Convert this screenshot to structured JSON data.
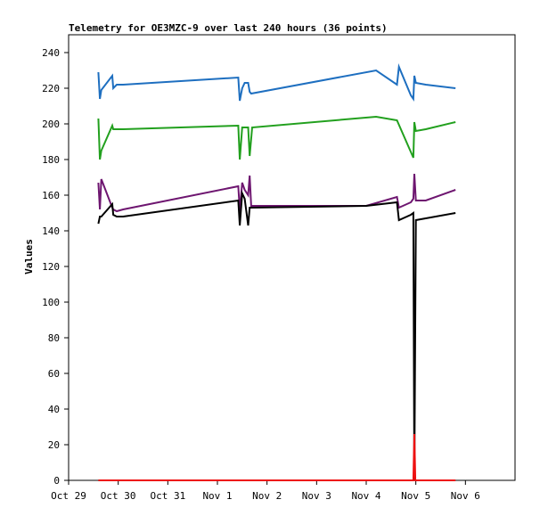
{
  "chart_data": {
    "type": "line",
    "title": "Telemetry for OE3MZC-9 over last 240 hours (36 points)",
    "xlabel": "",
    "ylabel": "Values",
    "xlim": [
      0,
      9
    ],
    "ylim": [
      0,
      250
    ],
    "x_ticks": [
      {
        "v": 0,
        "label": "Oct 29"
      },
      {
        "v": 1,
        "label": "Oct 30"
      },
      {
        "v": 2,
        "label": "Oct 31"
      },
      {
        "v": 3,
        "label": "Nov 1"
      },
      {
        "v": 4,
        "label": "Nov 2"
      },
      {
        "v": 5,
        "label": "Nov 3"
      },
      {
        "v": 6,
        "label": "Nov 4"
      },
      {
        "v": 7,
        "label": "Nov 5"
      },
      {
        "v": 8,
        "label": "Nov 6"
      }
    ],
    "y_ticks": [
      0,
      20,
      40,
      60,
      80,
      100,
      120,
      140,
      160,
      180,
      200,
      220,
      240
    ],
    "grid": false,
    "legend": "none",
    "series": [
      {
        "color": "#1e6fc0",
        "points": [
          [
            0.6,
            229
          ],
          [
            0.63,
            214
          ],
          [
            0.66,
            219
          ],
          [
            0.88,
            227
          ],
          [
            0.9,
            220
          ],
          [
            0.97,
            222
          ],
          [
            1.1,
            222
          ],
          [
            3.42,
            226
          ],
          [
            3.45,
            213
          ],
          [
            3.5,
            220
          ],
          [
            3.55,
            223
          ],
          [
            3.62,
            223
          ],
          [
            3.65,
            218
          ],
          [
            3.68,
            217
          ],
          [
            6.2,
            230
          ],
          [
            6.62,
            222
          ],
          [
            6.66,
            232
          ],
          [
            6.9,
            216
          ],
          [
            6.95,
            214
          ],
          [
            6.97,
            227
          ],
          [
            7.0,
            223
          ],
          [
            7.2,
            222
          ],
          [
            7.8,
            220
          ]
        ]
      },
      {
        "color": "#22a01e",
        "points": [
          [
            0.6,
            203
          ],
          [
            0.63,
            180
          ],
          [
            0.66,
            185
          ],
          [
            0.88,
            199
          ],
          [
            0.9,
            197
          ],
          [
            0.97,
            197
          ],
          [
            1.1,
            197
          ],
          [
            3.42,
            199
          ],
          [
            3.45,
            180
          ],
          [
            3.5,
            198
          ],
          [
            3.55,
            198
          ],
          [
            3.62,
            198
          ],
          [
            3.65,
            182
          ],
          [
            3.7,
            198
          ],
          [
            6.2,
            204
          ],
          [
            6.62,
            202
          ],
          [
            6.95,
            181
          ],
          [
            6.97,
            201
          ],
          [
            7.0,
            196
          ],
          [
            7.2,
            197
          ],
          [
            7.8,
            201
          ]
        ]
      },
      {
        "color": "#6e1670",
        "points": [
          [
            0.6,
            167
          ],
          [
            0.63,
            152
          ],
          [
            0.66,
            169
          ],
          [
            0.88,
            153
          ],
          [
            0.9,
            152
          ],
          [
            0.97,
            151
          ],
          [
            1.1,
            152
          ],
          [
            3.42,
            165
          ],
          [
            3.45,
            151
          ],
          [
            3.5,
            167
          ],
          [
            3.55,
            163
          ],
          [
            3.62,
            160
          ],
          [
            3.65,
            171
          ],
          [
            3.68,
            154
          ],
          [
            6.0,
            154
          ],
          [
            6.62,
            159
          ],
          [
            6.66,
            153
          ],
          [
            6.9,
            156
          ],
          [
            6.95,
            158
          ],
          [
            6.97,
            172
          ],
          [
            7.0,
            157
          ],
          [
            7.2,
            157
          ],
          [
            7.8,
            163
          ]
        ]
      },
      {
        "color": "#000000",
        "points": [
          [
            0.6,
            144
          ],
          [
            0.63,
            148
          ],
          [
            0.66,
            148
          ],
          [
            0.88,
            155
          ],
          [
            0.9,
            149
          ],
          [
            0.97,
            148
          ],
          [
            1.1,
            148
          ],
          [
            3.42,
            157
          ],
          [
            3.45,
            143
          ],
          [
            3.5,
            161
          ],
          [
            3.55,
            158
          ],
          [
            3.62,
            143
          ],
          [
            3.65,
            153
          ],
          [
            3.68,
            153
          ],
          [
            6.0,
            154
          ],
          [
            6.62,
            156
          ],
          [
            6.66,
            146
          ],
          [
            6.9,
            149
          ],
          [
            6.95,
            150
          ],
          [
            6.97,
            0
          ],
          [
            7.0,
            146
          ],
          [
            7.2,
            147
          ],
          [
            7.8,
            150
          ]
        ]
      },
      {
        "color": "#ee1111",
        "points": [
          [
            0.6,
            0
          ],
          [
            6.95,
            0
          ],
          [
            6.97,
            26
          ],
          [
            6.99,
            0
          ],
          [
            7.8,
            0
          ]
        ]
      }
    ]
  }
}
